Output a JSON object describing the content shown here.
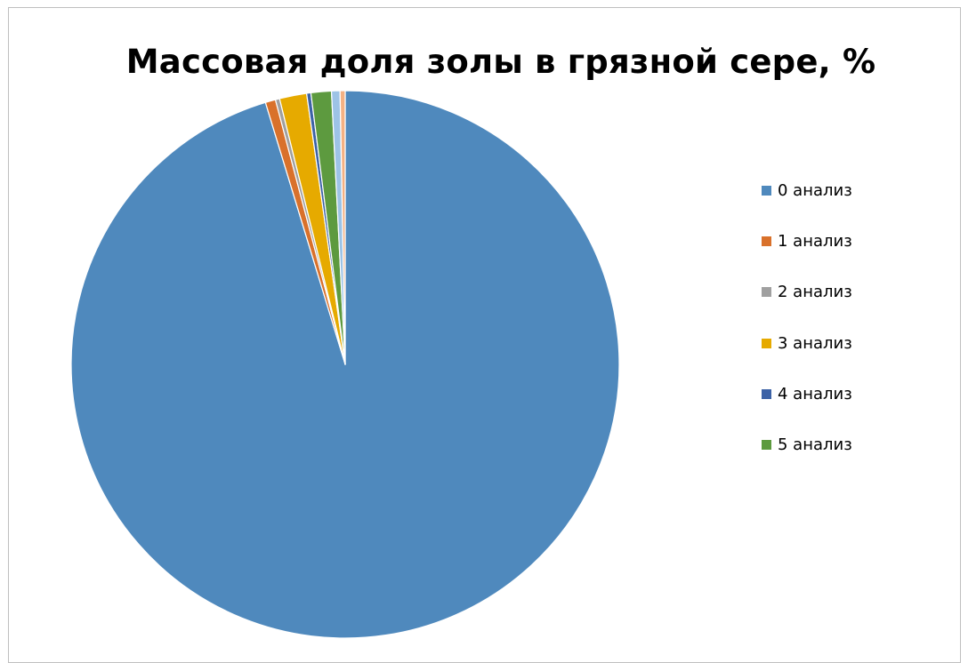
{
  "chart_data": {
    "type": "pie",
    "title": "Массовая доля золы в грязной сере, %",
    "categories": [
      "0 анализ",
      "1 анализ",
      "2 анализ",
      "3 анализ",
      "4 анализ",
      "5 анализ",
      "",
      ""
    ],
    "values": [
      95.3,
      0.6,
      0.25,
      1.6,
      0.25,
      1.2,
      0.5,
      0.3
    ],
    "colors": [
      "#4f89bd",
      "#d9712b",
      "#a0a0a0",
      "#e6aa00",
      "#3c62a6",
      "#5d9a3f",
      "#9dc3e6",
      "#f4b183"
    ],
    "legend_position": "right",
    "start_angle_deg": 0,
    "direction": "clockwise"
  }
}
